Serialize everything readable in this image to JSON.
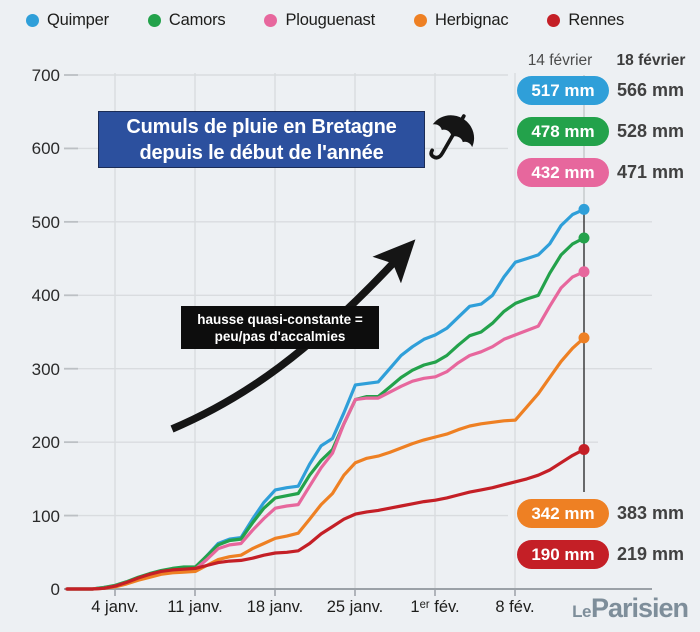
{
  "legend": {
    "items": [
      {
        "label": "Quimper",
        "color": "#2f9fd9"
      },
      {
        "label": "Camors",
        "color": "#23a24b"
      },
      {
        "label": "Plouguenast",
        "color": "#e7679d"
      },
      {
        "label": "Herbignac",
        "color": "#ee8023"
      },
      {
        "label": "Rennes",
        "color": "#c41f26"
      }
    ]
  },
  "title": {
    "line1": "Cumuls de pluie en Bretagne",
    "line2": "depuis le début de l'année",
    "icon": "umbrella-icon",
    "box_color": "#2c509e"
  },
  "annotation": {
    "line1": "hausse quasi-constante =",
    "line2": "peu/pas d'accalmies"
  },
  "results": {
    "header_left": "14 février",
    "header_right": "18 février",
    "rows": [
      {
        "city": "Quimper",
        "badge": "517 mm",
        "value": "566 mm",
        "color": "#2f9fd9"
      },
      {
        "city": "Camors",
        "badge": "478 mm",
        "value": "528 mm",
        "color": "#23a24b"
      },
      {
        "city": "Plouguenast",
        "badge": "432 mm",
        "value": "471 mm",
        "color": "#e7679d"
      },
      {
        "city": "Herbignac",
        "badge": "342 mm",
        "value": "383 mm",
        "color": "#ee8023"
      },
      {
        "city": "Rennes",
        "badge": "190 mm",
        "value": "219 mm",
        "color": "#c41f26"
      }
    ]
  },
  "logo": {
    "le": "Le",
    "parisien": "Parisien"
  },
  "chart_data": {
    "type": "line",
    "title": "Cumuls de pluie en Bretagne depuis le début de l'année",
    "ylabel": "mm",
    "ylim": [
      0,
      700
    ],
    "yticks": [
      0,
      100,
      200,
      300,
      400,
      500,
      600,
      700
    ],
    "xticklabels": [
      "4 janv.",
      "11 janv.",
      "18 janv.",
      "25 janv.",
      "1ᵉʳ fév.",
      "8 fév."
    ],
    "x_daily_from": "1 janvier",
    "x_daily_to": "14 février",
    "grid": true,
    "legend_position": "top",
    "series": [
      {
        "name": "Quimper",
        "color": "#2f9fd9",
        "value_14fev": 517,
        "value_18fev": 566,
        "values": [
          0,
          0,
          2,
          4,
          8,
          14,
          18,
          22,
          25,
          27,
          28,
          45,
          62,
          68,
          70,
          95,
          118,
          135,
          138,
          140,
          170,
          195,
          205,
          240,
          278,
          280,
          282,
          300,
          318,
          330,
          340,
          346,
          355,
          370,
          385,
          388,
          400,
          425,
          445,
          450,
          455,
          470,
          495,
          510,
          517
        ]
      },
      {
        "name": "Camors",
        "color": "#23a24b",
        "value_14fev": 478,
        "value_18fev": 528,
        "values": [
          0,
          0,
          2,
          5,
          10,
          16,
          21,
          25,
          28,
          30,
          30,
          45,
          60,
          66,
          68,
          90,
          110,
          124,
          127,
          130,
          155,
          175,
          190,
          225,
          258,
          262,
          262,
          275,
          288,
          298,
          305,
          309,
          318,
          332,
          345,
          350,
          362,
          378,
          389,
          395,
          400,
          430,
          455,
          470,
          478
        ]
      },
      {
        "name": "Plouguenast",
        "color": "#e7679d",
        "value_14fev": 432,
        "value_18fev": 471,
        "values": [
          0,
          0,
          1,
          4,
          9,
          14,
          19,
          23,
          25,
          26,
          27,
          40,
          55,
          60,
          62,
          80,
          96,
          110,
          113,
          115,
          140,
          165,
          185,
          225,
          258,
          260,
          260,
          268,
          276,
          283,
          287,
          289,
          296,
          308,
          318,
          323,
          330,
          340,
          346,
          352,
          358,
          385,
          410,
          425,
          432
        ]
      },
      {
        "name": "Herbignac",
        "color": "#ee8023",
        "value_14fev": 342,
        "value_18fev": 383,
        "values": [
          0,
          0,
          1,
          3,
          7,
          12,
          16,
          20,
          22,
          23,
          24,
          32,
          40,
          44,
          46,
          55,
          62,
          69,
          72,
          76,
          95,
          115,
          130,
          155,
          172,
          178,
          181,
          186,
          192,
          198,
          203,
          207,
          211,
          217,
          222,
          225,
          227,
          229,
          230,
          248,
          266,
          288,
          310,
          328,
          342
        ]
      },
      {
        "name": "Rennes",
        "color": "#c41f26",
        "value_14fev": 190,
        "value_18fev": 219,
        "values": [
          0,
          0,
          1,
          4,
          9,
          15,
          20,
          24,
          26,
          27,
          28,
          32,
          36,
          38,
          39,
          42,
          46,
          49,
          50,
          52,
          62,
          75,
          85,
          95,
          102,
          105,
          107,
          110,
          113,
          116,
          119,
          121,
          124,
          128,
          132,
          135,
          138,
          142,
          146,
          150,
          155,
          162,
          172,
          182,
          190
        ]
      }
    ]
  }
}
